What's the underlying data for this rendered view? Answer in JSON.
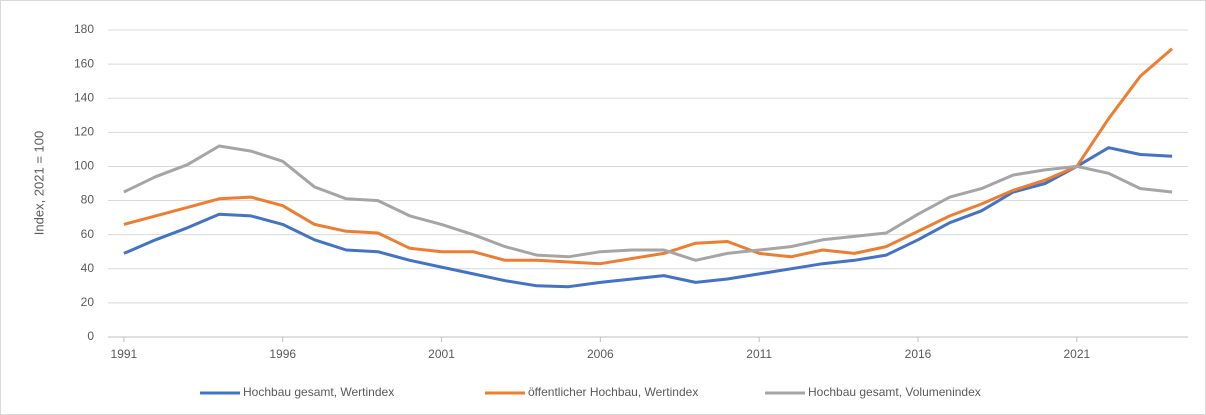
{
  "chart_data": {
    "type": "line",
    "y_label": "Index, 2021 = 100",
    "x": [
      1991,
      1992,
      1993,
      1994,
      1995,
      1996,
      1997,
      1998,
      1999,
      2000,
      2001,
      2002,
      2003,
      2004,
      2005,
      2006,
      2007,
      2008,
      2009,
      2010,
      2011,
      2012,
      2013,
      2014,
      2015,
      2016,
      2017,
      2018,
      2019,
      2020,
      2021,
      2022,
      2023,
      2024
    ],
    "xlim": [
      1990.5,
      2024.5
    ],
    "xticks": [
      1991,
      1996,
      2001,
      2006,
      2011,
      2016,
      2021
    ],
    "ylim": [
      0,
      180
    ],
    "yticks": [
      0,
      20,
      40,
      60,
      80,
      100,
      120,
      140,
      160,
      180
    ],
    "grid": true,
    "legend": "bottom",
    "series": [
      {
        "name": "Hochbau gesamt, Wertindex",
        "color": "#4472c4",
        "values": [
          49,
          57,
          64,
          72,
          71,
          66,
          57,
          51,
          50,
          45,
          41,
          37,
          33,
          30,
          29.5,
          32,
          34,
          36,
          32,
          34,
          37,
          40,
          43,
          45,
          48,
          57,
          67,
          74,
          85,
          90,
          100,
          111,
          107,
          106
        ]
      },
      {
        "name": "öffentlicher Hochbau, Wertindex",
        "color": "#ed7d31",
        "values": [
          66,
          71,
          76,
          81,
          82,
          77,
          66,
          62,
          61,
          52,
          50,
          50,
          45,
          45,
          44,
          43,
          46,
          49,
          55,
          56,
          49,
          47,
          51,
          49,
          53,
          62,
          71,
          78,
          86,
          92,
          100,
          128,
          153,
          169
        ]
      },
      {
        "name": "Hochbau gesamt, Volumenindex",
        "color": "#a5a5a5",
        "values": [
          85,
          94,
          101,
          112,
          109,
          103,
          88,
          81,
          80,
          71,
          66,
          60,
          53,
          48,
          47,
          50,
          51,
          51,
          45,
          49,
          51,
          53,
          57,
          59,
          61,
          72,
          82,
          87,
          95,
          98,
          100,
          96,
          87,
          85
        ]
      }
    ]
  }
}
